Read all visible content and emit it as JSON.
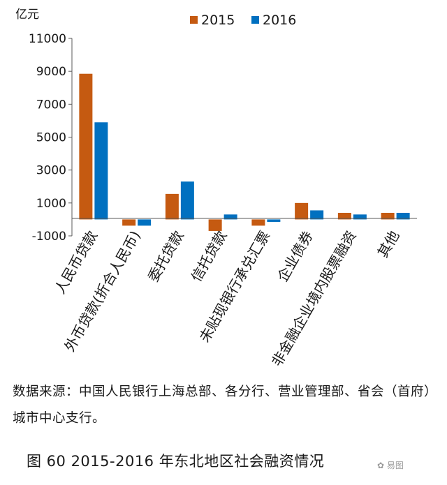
{
  "chart_data": {
    "type": "bar",
    "ylabel": "亿元",
    "categories": [
      "人民币贷款",
      "外币贷款(折合人民币)",
      "委托贷款",
      "信托贷款",
      "未贴现银行承兑汇票",
      "企业债券",
      "非金融企业境内股票融资",
      "其他"
    ],
    "series": [
      {
        "name": "2015",
        "color": "#c55a11",
        "values": [
          8850,
          -380,
          1550,
          -700,
          -380,
          1000,
          400,
          400
        ]
      },
      {
        "name": "2016",
        "color": "#0070c0",
        "values": [
          5900,
          -380,
          2300,
          300,
          -150,
          550,
          300,
          400
        ]
      }
    ],
    "ylim": [
      -1000,
      11000
    ],
    "yticks": [
      -1000,
      1000,
      3000,
      5000,
      7000,
      9000,
      11000
    ],
    "legend_position": "top"
  },
  "source_note": "数据来源：中国人民银行上海总部、各分行、营业管理部、省会（首府）城市中心支行。",
  "caption": "图 60   2015-2016 年东北地区社会融资情况",
  "watermark": "易图"
}
